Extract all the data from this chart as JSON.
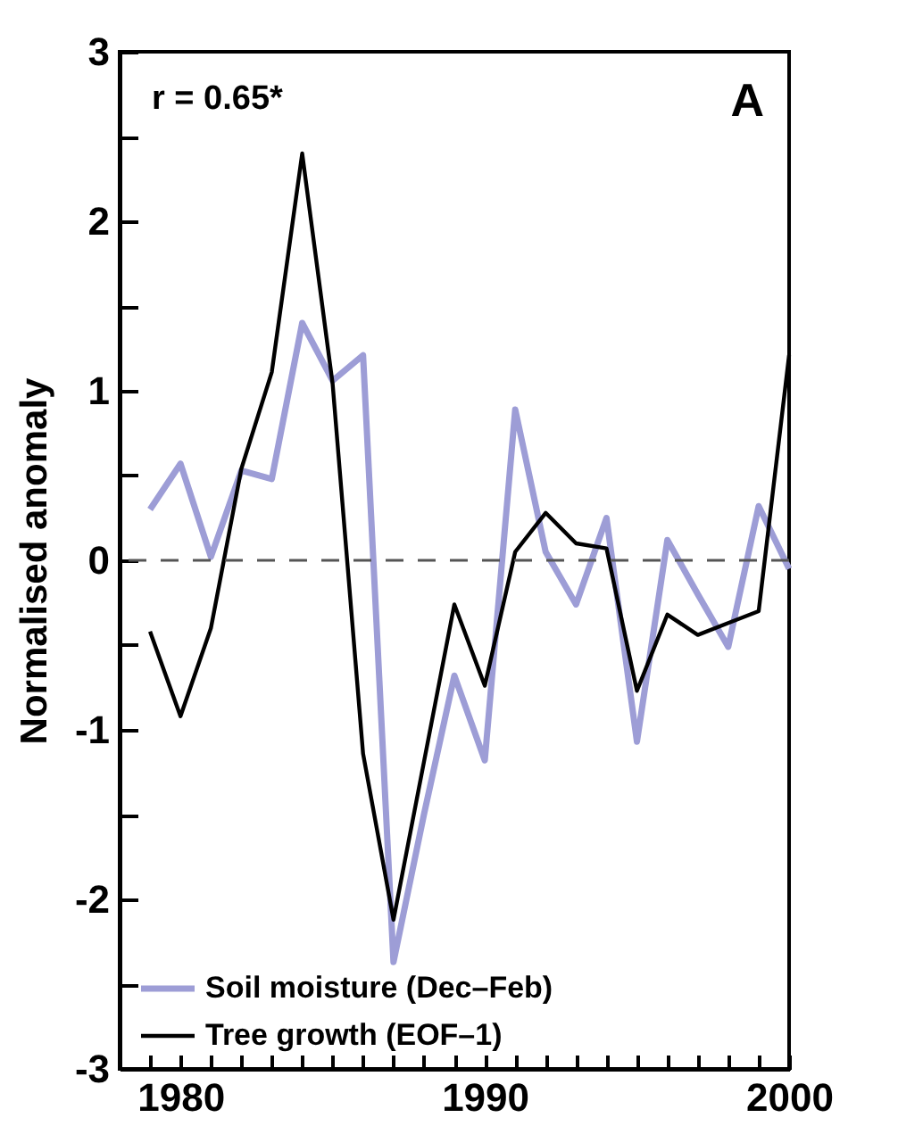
{
  "chart_data": {
    "type": "line",
    "ylabel": "Normalised anomaly",
    "annotations": [
      "r = 0.65*",
      "A"
    ],
    "x": [
      1979,
      1980,
      1981,
      1982,
      1983,
      1984,
      1985,
      1986,
      1987,
      1988,
      1989,
      1990,
      1991,
      1992,
      1993,
      1994,
      1995,
      1996,
      1997,
      1998,
      1999,
      2000
    ],
    "series": [
      {
        "name": "Soil moisture (Dec–Feb)",
        "color": "#9d9dd6",
        "values": [
          0.3,
          0.57,
          0.02,
          0.53,
          0.48,
          1.4,
          1.06,
          1.21,
          -2.37,
          -1.5,
          -0.68,
          -1.18,
          0.89,
          0.05,
          -0.26,
          0.25,
          -1.07,
          0.12,
          -0.2,
          -0.51,
          0.32,
          -0.05
        ]
      },
      {
        "name": "Tree growth (EOF–1)",
        "color": "#000000",
        "values": [
          -0.42,
          -0.92,
          -0.4,
          0.54,
          1.11,
          2.4,
          1.04,
          -1.14,
          -2.12,
          -1.19,
          -0.26,
          -0.74,
          0.05,
          0.28,
          0.1,
          0.07,
          -0.77,
          -0.32,
          -0.44,
          -0.37,
          -0.3,
          1.21
        ]
      }
    ],
    "xlim": [
      1978,
      2000
    ],
    "xticks": [
      {
        "value": 1978,
        "label": null
      },
      {
        "value": 1979,
        "label": null
      },
      1980,
      {
        "value": 1981,
        "label": null
      },
      {
        "value": 1982,
        "label": null
      },
      {
        "value": 1983,
        "label": null
      },
      {
        "value": 1984,
        "label": null
      },
      {
        "value": 1985,
        "label": null
      },
      {
        "value": 1986,
        "label": null
      },
      {
        "value": 1987,
        "label": null
      },
      {
        "value": 1988,
        "label": null
      },
      {
        "value": 1989,
        "label": null
      },
      1990,
      {
        "value": 1991,
        "label": null
      },
      {
        "value": 1992,
        "label": null
      },
      {
        "value": 1993,
        "label": null
      },
      {
        "value": 1994,
        "label": null
      },
      {
        "value": 1995,
        "label": null
      },
      {
        "value": 1996,
        "label": null
      },
      {
        "value": 1997,
        "label": null
      },
      {
        "value": 1998,
        "label": null
      },
      {
        "value": 1999,
        "label": null
      },
      2000
    ],
    "ylim": [
      -3,
      3
    ],
    "yticks": [
      -3,
      {
        "value": -2.5,
        "label": null
      },
      -2,
      {
        "value": -1.5,
        "label": null
      },
      -1,
      {
        "value": -0.5,
        "label": null
      },
      0,
      {
        "value": 0.5,
        "label": null
      },
      1,
      {
        "value": 1.5,
        "label": null
      },
      2,
      {
        "value": 2.5,
        "label": null
      },
      3
    ],
    "ref_lines": [
      {
        "axis": "y",
        "value": 0,
        "color": "#555555",
        "line_style": "dashed"
      }
    ],
    "legend": "bottom left",
    "grid": false,
    "marker": "none"
  }
}
